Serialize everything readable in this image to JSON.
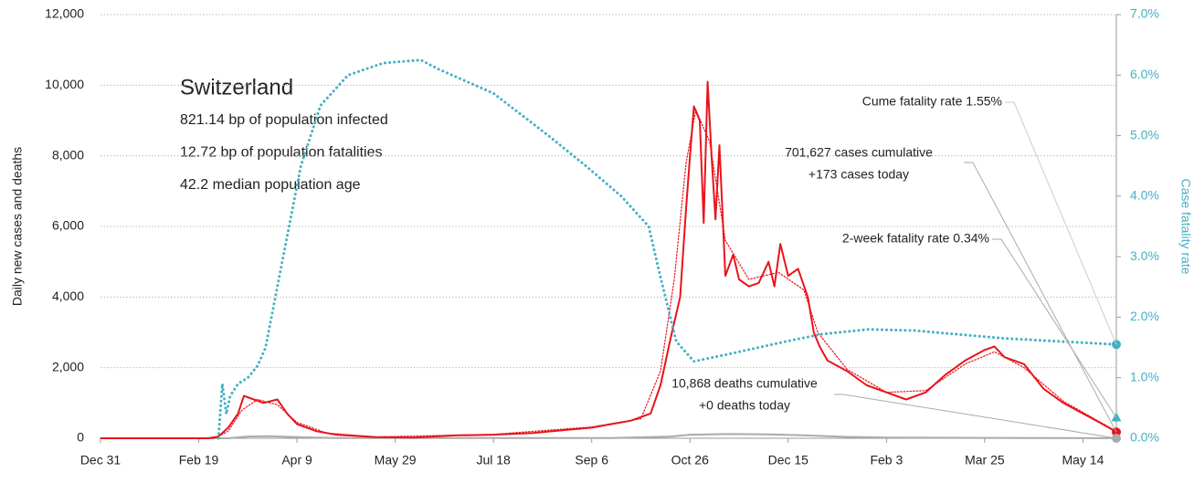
{
  "chart_data": {
    "type": "line",
    "info": {
      "title": "Switzerland",
      "lines": [
        "821.14 bp of population infected",
        "12.72 bp of population fatalities",
        "42.2 median population age"
      ]
    },
    "ylabel": "Daily new cases and deaths",
    "y2label": "Case fatality rate",
    "xlim": [
      0,
      517
    ],
    "xticks": [
      {
        "value": 0,
        "label": "Dec 31"
      },
      {
        "value": 50,
        "label": "Feb 19"
      },
      {
        "value": 100,
        "label": "Apr 9"
      },
      {
        "value": 150,
        "label": "May 29"
      },
      {
        "value": 200,
        "label": "Jul 18"
      },
      {
        "value": 250,
        "label": "Sep 6"
      },
      {
        "value": 300,
        "label": "Oct 26"
      },
      {
        "value": 350,
        "label": "Dec 15"
      },
      {
        "value": 400,
        "label": "Feb 3"
      },
      {
        "value": 450,
        "label": "Mar 25"
      },
      {
        "value": 500,
        "label": "May 14"
      }
    ],
    "ylim": [
      0,
      12000
    ],
    "yticks": [
      0,
      {
        "value": 2000,
        "label": "2,000"
      },
      {
        "value": 4000,
        "label": "4,000"
      },
      {
        "value": 6000,
        "label": "6,000"
      },
      {
        "value": 8000,
        "label": "8,000"
      },
      {
        "value": 10000,
        "label": "10,000"
      },
      {
        "value": 12000,
        "label": "12,000"
      }
    ],
    "y2lim": [
      0,
      7
    ],
    "y2ticks": [
      {
        "value": 0,
        "label": "0.0%"
      },
      {
        "value": 1,
        "label": "1.0%"
      },
      {
        "value": 2,
        "label": "2.0%"
      },
      {
        "value": 3,
        "label": "3.0%"
      },
      {
        "value": 4,
        "label": "4.0%"
      },
      {
        "value": 5,
        "label": "5.0%"
      },
      {
        "value": 6,
        "label": "6.0%"
      },
      {
        "value": 7,
        "label": "7.0%"
      }
    ],
    "grid": true,
    "series": [
      {
        "color": "#aaaaaa",
        "style": "solid",
        "x": [
          0,
          65,
          75,
          85,
          100,
          120,
          260,
          290,
          300,
          320,
          340,
          360,
          380,
          400,
          450,
          517
        ],
        "values": [
          0,
          0,
          50,
          60,
          30,
          5,
          5,
          50,
          100,
          120,
          110,
          80,
          40,
          20,
          10,
          2
        ]
      },
      {
        "color": "#e8141c",
        "style": "dotted",
        "x": [
          0,
          58,
          65,
          72,
          80,
          90,
          100,
          115,
          140,
          200,
          250,
          275,
          285,
          292,
          298,
          303,
          310,
          318,
          330,
          345,
          358,
          365,
          380,
          400,
          420,
          440,
          455,
          470,
          490,
          517
        ],
        "values": [
          0,
          0,
          200,
          800,
          1100,
          950,
          450,
          150,
          40,
          110,
          320,
          550,
          1900,
          4500,
          7800,
          9300,
          8400,
          5600,
          4500,
          4700,
          4200,
          3000,
          1950,
          1300,
          1350,
          2100,
          2450,
          2000,
          1050,
          200
        ]
      },
      {
        "color": "#e8141c",
        "style": "solid",
        "x": [
          0,
          55,
          60,
          65,
          70,
          73,
          78,
          83,
          90,
          95,
          100,
          110,
          120,
          140,
          160,
          180,
          200,
          220,
          240,
          250,
          260,
          270,
          280,
          285,
          290,
          295,
          298,
          300,
          302,
          305,
          307,
          309,
          311,
          313,
          315,
          318,
          322,
          325,
          330,
          335,
          340,
          343,
          346,
          350,
          355,
          360,
          363,
          366,
          370,
          380,
          390,
          400,
          410,
          420,
          430,
          440,
          450,
          455,
          460,
          470,
          480,
          490,
          500,
          510,
          517
        ],
        "values": [
          0,
          0,
          50,
          300,
          700,
          1200,
          1100,
          1000,
          1100,
          700,
          400,
          200,
          100,
          30,
          20,
          80,
          100,
          150,
          250,
          300,
          400,
          500,
          700,
          1500,
          2800,
          4000,
          6500,
          8000,
          9400,
          9000,
          6100,
          10100,
          8000,
          6200,
          8300,
          4600,
          5200,
          4500,
          4300,
          4400,
          5000,
          4300,
          5500,
          4600,
          4800,
          4000,
          3000,
          2600,
          2200,
          1900,
          1500,
          1300,
          1100,
          1300,
          1800,
          2200,
          2500,
          2600,
          2300,
          2100,
          1400,
          1000,
          700,
          400,
          180
        ]
      },
      {
        "color": "#45b0c6",
        "style": "dotted",
        "axis": "y2",
        "x": [
          60,
          62,
          64,
          66,
          70,
          75,
          80,
          84,
          93,
          102,
          112,
          126,
          144,
          163,
          172,
          200,
          228,
          247,
          265,
          279,
          284,
          293,
          302,
          321,
          349,
          367,
          391,
          414,
          460,
          517
        ],
        "values": [
          0,
          0.9,
          0.4,
          0.7,
          0.9,
          1.0,
          1.2,
          1.5,
          3.0,
          4.5,
          5.5,
          6.0,
          6.2,
          6.25,
          6.1,
          5.7,
          5.0,
          4.5,
          4.0,
          3.5,
          2.8,
          1.6,
          1.27,
          1.4,
          1.6,
          1.72,
          1.8,
          1.78,
          1.65,
          1.55
        ]
      }
    ],
    "end_points": [
      {
        "value": 1.55,
        "axis": "y2",
        "color": "#45b0c6",
        "shape": "circle"
      },
      {
        "value": 0.34,
        "axis": "y2",
        "color": "#45b0c6",
        "shape": "triangle"
      },
      {
        "value": 173,
        "axis": "y",
        "color": "#e8141c",
        "shape": "circle"
      },
      {
        "value": 0,
        "axis": "y",
        "color": "#aaaaaa",
        "shape": "circle"
      }
    ],
    "annotations": [
      {
        "lines": [
          "Cume fatality rate 1.55%"
        ],
        "target": 0
      },
      {
        "lines": [
          "701,627 cases cumulative",
          "+173 cases today"
        ],
        "target": 2
      },
      {
        "lines": [
          "2-week fatality rate 0.34%"
        ],
        "target": 1
      },
      {
        "lines": [
          "10,868 deaths cumulative",
          "+0 deaths today"
        ],
        "target": 3
      }
    ]
  }
}
